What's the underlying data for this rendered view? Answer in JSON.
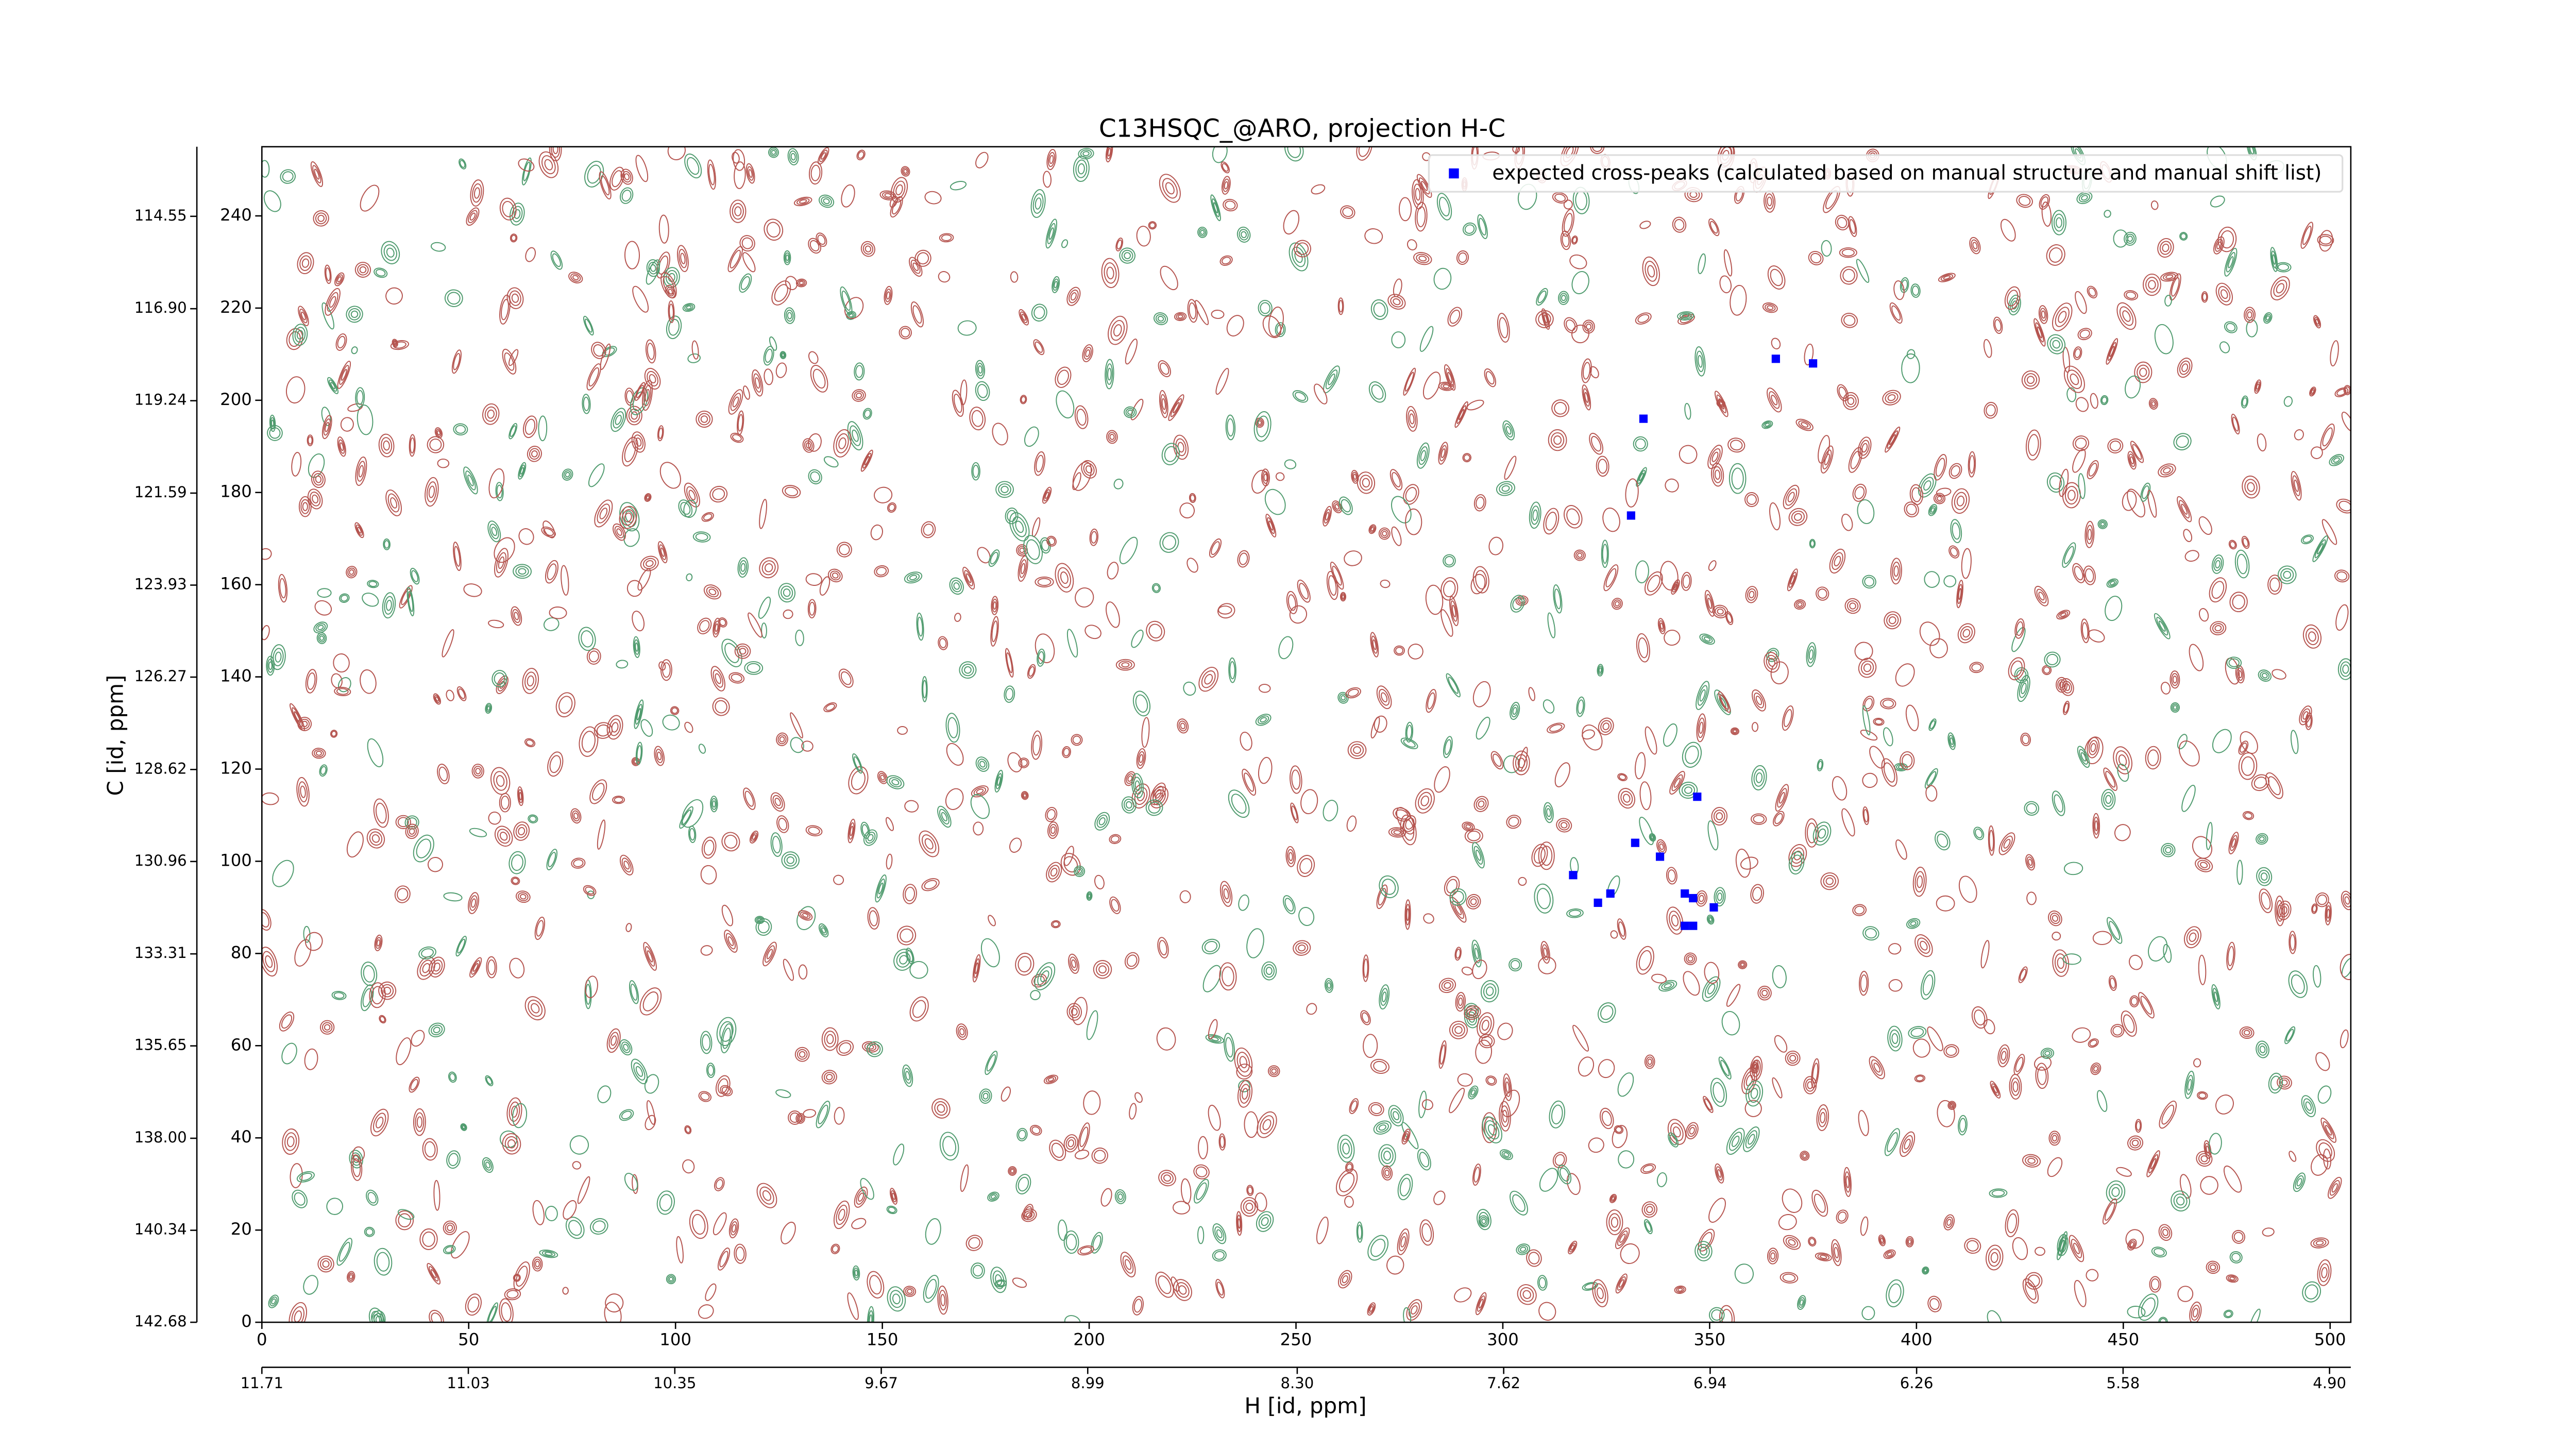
{
  "chart_data": {
    "type": "scatter",
    "title": "C13HSQC_@ARO, projection H-C",
    "xlabel": "H [id, ppm]",
    "ylabel": "C [id, ppm]",
    "xlim": [
      0,
      505
    ],
    "xticks": [
      0,
      50,
      100,
      150,
      200,
      250,
      300,
      350,
      400,
      450,
      500
    ],
    "ylim": [
      0,
      255
    ],
    "yticks": [
      0,
      20,
      40,
      60,
      80,
      100,
      120,
      140,
      160,
      180,
      200,
      220,
      240
    ],
    "x2lim": [
      11.71,
      4.83
    ],
    "x2ticks": [
      11.71,
      11.03,
      10.35,
      9.67,
      8.99,
      {
        "value": 8.3,
        "label": "8.30"
      },
      7.62,
      6.94,
      6.26,
      5.58,
      {
        "value": 4.9,
        "label": "4.90"
      }
    ],
    "y2lim": [
      142.68,
      112.78
    ],
    "y2ticks": [
      142.68,
      140.34,
      {
        "value": 138,
        "label": "138.00"
      },
      135.65,
      133.31,
      130.96,
      128.62,
      126.27,
      123.93,
      121.59,
      119.24,
      {
        "value": 116.9,
        "label": "116.90"
      },
      114.55
    ],
    "legend": "upper right",
    "series": [
      {
        "name": "expected cross-peaks (calculated based on manual structure and manual shift list)",
        "color": "#0000ff",
        "x": [
          366,
          375,
          334,
          331,
          347,
          332,
          338,
          317,
          326,
          323,
          344,
          346,
          351,
          344,
          346
        ],
        "values": [
          209,
          208,
          196,
          175,
          114,
          104,
          101,
          97,
          93,
          91,
          93,
          92,
          90,
          86,
          86
        ]
      }
    ]
  }
}
